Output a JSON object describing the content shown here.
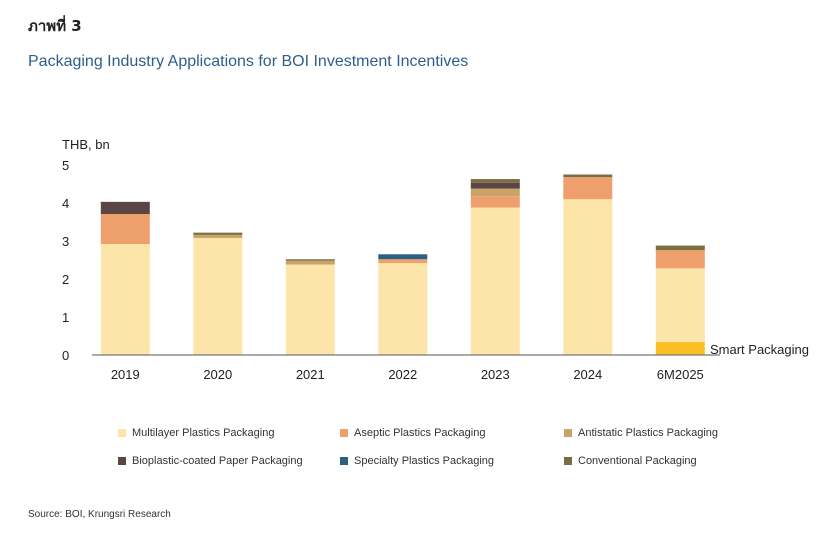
{
  "figure_label": "ภาพที่ 3",
  "source": "Source: BOI, Krungsri Research",
  "chart_data": {
    "type": "bar",
    "stacked": true,
    "title": "Packaging Industry Applications for BOI Investment Incentives",
    "ylabel": "THB, bn",
    "xlabel": "",
    "ylim": [
      0,
      5
    ],
    "yticks": [
      0,
      1,
      2,
      3,
      4,
      5
    ],
    "categories": [
      "2019",
      "2020",
      "2021",
      "2022",
      "2023",
      "2024",
      "6M2025"
    ],
    "series": [
      {
        "name": "Smart Packaging",
        "color": "#FBBF24",
        "values": [
          0,
          0,
          0,
          0,
          0,
          0,
          0.34
        ],
        "inline_label": true
      },
      {
        "name": "Multilayer Plastics Packaging",
        "color": "#FDE5A9",
        "values": [
          2.92,
          3.08,
          2.38,
          2.42,
          3.88,
          4.1,
          1.94
        ]
      },
      {
        "name": "Aseptic Plastics Packaging",
        "color": "#EDA06B",
        "values": [
          0.79,
          0,
          0,
          0.1,
          0.3,
          0.58,
          0.48
        ]
      },
      {
        "name": "Antistatic Plastics Packaging",
        "color": "#C8A46A",
        "values": [
          0,
          0.08,
          0.1,
          0,
          0.2,
          0,
          0
        ]
      },
      {
        "name": "Bioplastic-coated Paper Packaging",
        "color": "#5B4646",
        "values": [
          0.32,
          0,
          0,
          0,
          0.15,
          0,
          0
        ]
      },
      {
        "name": "Specialty Plastics Packaging",
        "color": "#2F5F80",
        "values": [
          0,
          0,
          0,
          0.13,
          0,
          0,
          0
        ]
      },
      {
        "name": "Conventional Packaging",
        "color": "#7A6E45",
        "values": [
          0,
          0.06,
          0.04,
          0,
          0.1,
          0.07,
          0.12
        ]
      }
    ],
    "legend_order": [
      1,
      2,
      3,
      4,
      5,
      6
    ],
    "legend_position": "bottom",
    "grid": false
  }
}
